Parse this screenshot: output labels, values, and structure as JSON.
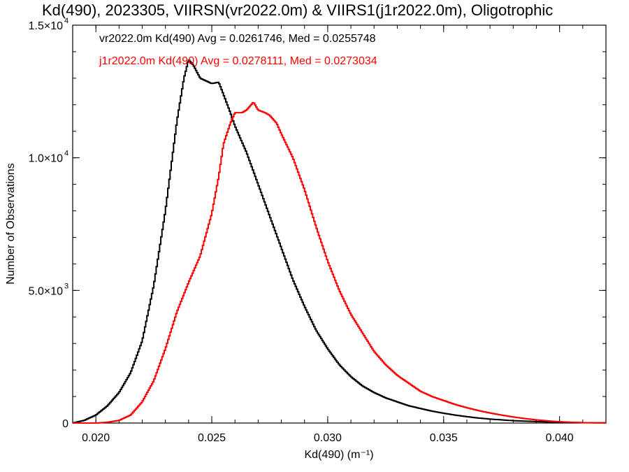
{
  "chart_data": {
    "type": "line",
    "title": "Kd(490), 2023305, VIIRSN(vr2022.0m) & VIIRS1(j1r2022.0m), Oligotrophic",
    "xlabel": "Kd(490) (m⁻¹)",
    "ylabel": "Number of Observations",
    "xlim": [
      0.019,
      0.042
    ],
    "ylim": [
      0,
      15000
    ],
    "grid": false,
    "x_ticks": [
      0.02,
      0.025,
      0.03,
      0.035,
      0.04
    ],
    "x_tick_labels": [
      "0.020",
      "0.025",
      "0.030",
      "0.035",
      "0.040"
    ],
    "y_ticks": [
      0,
      5000,
      10000,
      15000
    ],
    "y_tick_labels": [
      {
        "mant": "0",
        "exp": ""
      },
      {
        "mant": "5.0×10",
        "exp": "3"
      },
      {
        "mant": "1.0×10",
        "exp": "4"
      },
      {
        "mant": "1.5×10",
        "exp": "4"
      }
    ],
    "annotations": [
      {
        "text": "vr2022.0m Kd(490) Avg = 0.0261746, Med = 0.0255748",
        "color": "#000000"
      },
      {
        "text": "j1r2022.0m Kd(490) Avg = 0.0278111, Med = 0.0273034",
        "color": "#ff0000"
      }
    ],
    "series": [
      {
        "color": "#000000",
        "points": [
          [
            0.019,
            0
          ],
          [
            0.0195,
            100
          ],
          [
            0.02,
            300
          ],
          [
            0.0205,
            650
          ],
          [
            0.021,
            1150
          ],
          [
            0.0215,
            1900
          ],
          [
            0.022,
            3100
          ],
          [
            0.0225,
            5200
          ],
          [
            0.023,
            8000
          ],
          [
            0.0235,
            11400
          ],
          [
            0.0238,
            13000
          ],
          [
            0.024,
            13700
          ],
          [
            0.0242,
            13500
          ],
          [
            0.0245,
            13000
          ],
          [
            0.025,
            12800
          ],
          [
            0.0253,
            12850
          ],
          [
            0.0255,
            12400
          ],
          [
            0.0258,
            11700
          ],
          [
            0.026,
            11200
          ],
          [
            0.0265,
            10200
          ],
          [
            0.027,
            9000
          ],
          [
            0.0275,
            7800
          ],
          [
            0.028,
            6600
          ],
          [
            0.0285,
            5400
          ],
          [
            0.029,
            4400
          ],
          [
            0.0295,
            3500
          ],
          [
            0.03,
            2800
          ],
          [
            0.0305,
            2200
          ],
          [
            0.031,
            1750
          ],
          [
            0.0315,
            1400
          ],
          [
            0.032,
            1150
          ],
          [
            0.0325,
            950
          ],
          [
            0.033,
            800
          ],
          [
            0.0335,
            650
          ],
          [
            0.034,
            550
          ],
          [
            0.0345,
            450
          ],
          [
            0.035,
            370
          ],
          [
            0.0355,
            300
          ],
          [
            0.036,
            240
          ],
          [
            0.0365,
            190
          ],
          [
            0.037,
            150
          ],
          [
            0.038,
            90
          ],
          [
            0.039,
            55
          ],
          [
            0.04,
            30
          ],
          [
            0.041,
            15
          ],
          [
            0.042,
            8
          ]
        ]
      },
      {
        "color": "#ff0000",
        "points": [
          [
            0.019,
            0
          ],
          [
            0.02,
            0
          ],
          [
            0.0205,
            30
          ],
          [
            0.021,
            100
          ],
          [
            0.0215,
            300
          ],
          [
            0.022,
            800
          ],
          [
            0.0225,
            1600
          ],
          [
            0.023,
            2800
          ],
          [
            0.0235,
            4200
          ],
          [
            0.024,
            5300
          ],
          [
            0.0245,
            6300
          ],
          [
            0.025,
            7900
          ],
          [
            0.0253,
            9300
          ],
          [
            0.0255,
            10500
          ],
          [
            0.0258,
            11300
          ],
          [
            0.026,
            11700
          ],
          [
            0.0263,
            11700
          ],
          [
            0.0265,
            11800
          ],
          [
            0.0268,
            12100
          ],
          [
            0.027,
            11800
          ],
          [
            0.0273,
            11700
          ],
          [
            0.0275,
            11600
          ],
          [
            0.0278,
            11300
          ],
          [
            0.028,
            10900
          ],
          [
            0.0285,
            10000
          ],
          [
            0.029,
            8800
          ],
          [
            0.0295,
            7400
          ],
          [
            0.03,
            6100
          ],
          [
            0.0305,
            5000
          ],
          [
            0.031,
            4100
          ],
          [
            0.0315,
            3400
          ],
          [
            0.032,
            2700
          ],
          [
            0.0325,
            2200
          ],
          [
            0.033,
            1800
          ],
          [
            0.0335,
            1500
          ],
          [
            0.034,
            1200
          ],
          [
            0.0345,
            1000
          ],
          [
            0.035,
            850
          ],
          [
            0.0355,
            700
          ],
          [
            0.036,
            580
          ],
          [
            0.0365,
            470
          ],
          [
            0.037,
            380
          ],
          [
            0.0375,
            300
          ],
          [
            0.038,
            230
          ],
          [
            0.0385,
            170
          ],
          [
            0.039,
            120
          ],
          [
            0.0395,
            80
          ],
          [
            0.04,
            50
          ],
          [
            0.0405,
            30
          ],
          [
            0.041,
            15
          ],
          [
            0.042,
            5
          ]
        ]
      }
    ]
  }
}
